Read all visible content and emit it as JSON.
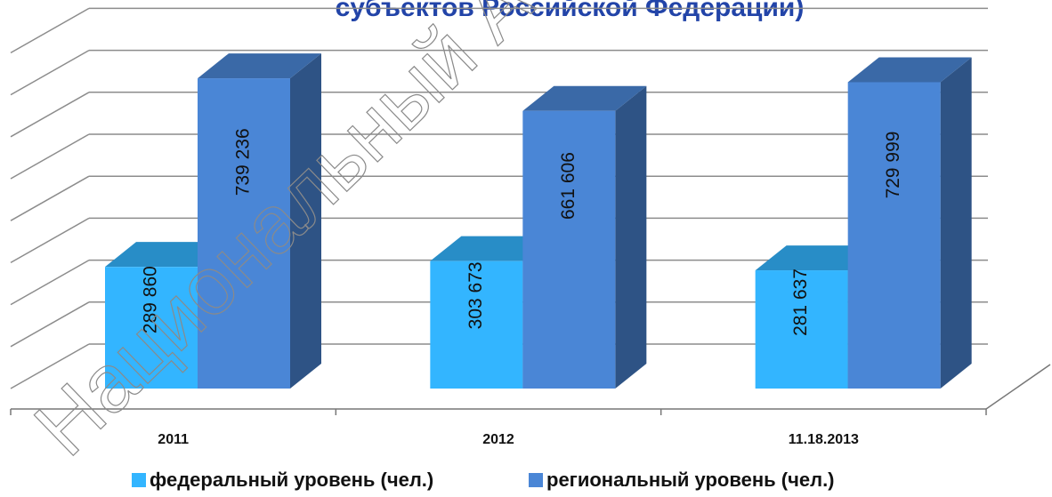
{
  "chart_data": {
    "type": "bar3d",
    "title": "субъектов Российской Федерации)",
    "watermark": "Национальный А",
    "categories": [
      "2011",
      "2012",
      "11.18.2013"
    ],
    "series": [
      {
        "name": "федеральный уровень (чел.)",
        "color": "#33b5ff",
        "values": [
          289860,
          303673,
          281637
        ],
        "value_labels": [
          "289 860",
          "303 673",
          "281 637"
        ]
      },
      {
        "name": "региональный уровень (чел.)",
        "color": "#4a86d6",
        "values": [
          739236,
          661606,
          729999
        ],
        "value_labels": [
          "739 236",
          "661 606",
          "729 999"
        ]
      }
    ],
    "ylim": [
      0,
      800000
    ],
    "yticks": [
      0,
      100000,
      200000,
      300000,
      400000,
      500000,
      600000,
      700000,
      800000
    ],
    "grid": true,
    "legend": "bottom"
  }
}
